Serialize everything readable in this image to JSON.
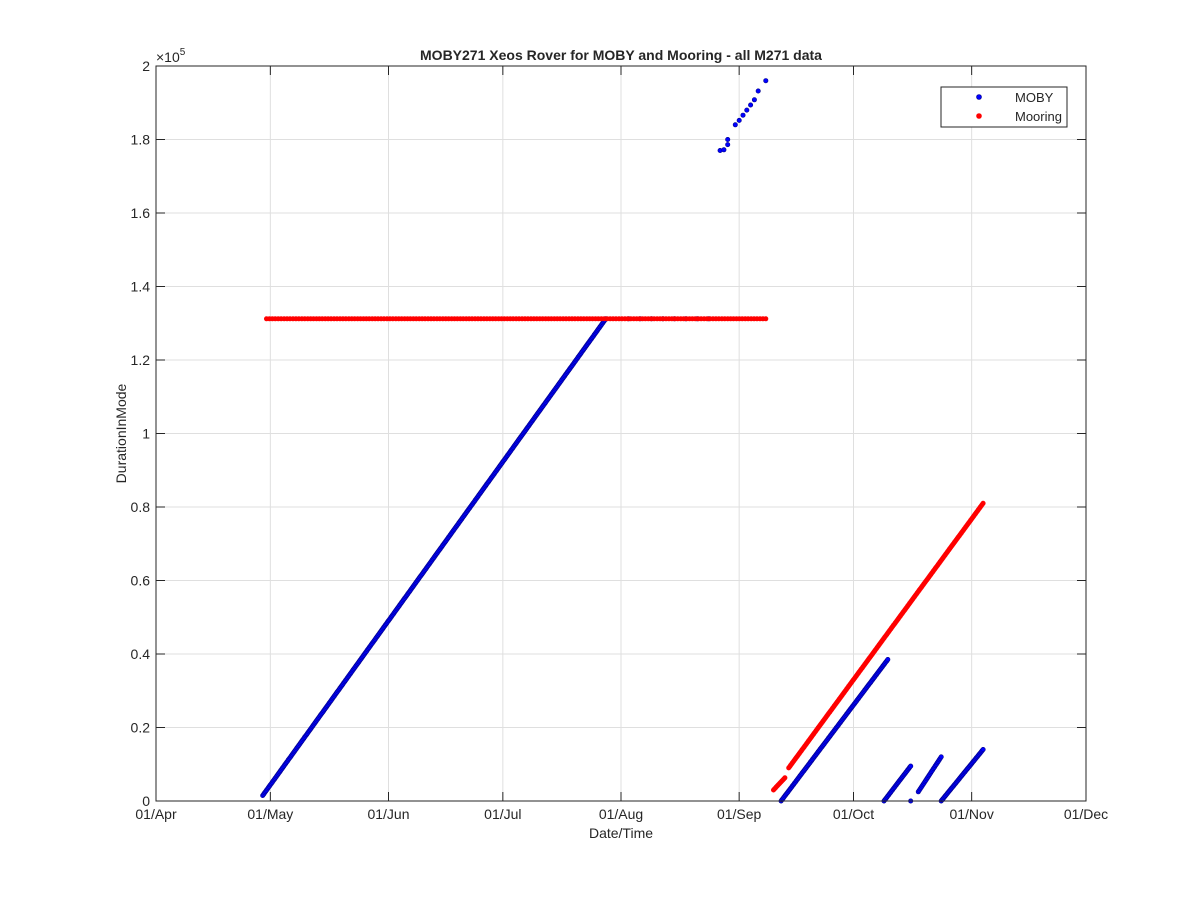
{
  "chart_data": {
    "type": "scatter",
    "title": "MOBY271 Xeos Rover for MOBY and Mooring - all M271 data",
    "xlabel": "Date/Time",
    "ylabel": "DurationInMode",
    "x_tick_labels": [
      "01/Apr",
      "01/May",
      "01/Jun",
      "01/Jul",
      "01/Aug",
      "01/Sep",
      "01/Oct",
      "01/Nov",
      "01/Dec"
    ],
    "y_tick_labels": [
      "0",
      "0.2",
      "0.4",
      "0.6",
      "0.8",
      "1",
      "1.2",
      "1.4",
      "1.6",
      "1.8",
      "2"
    ],
    "y_exponent_base": "×10",
    "y_exponent_power": "5",
    "xlim": [
      "2023-04-01",
      "2023-12-01"
    ],
    "ylim": [
      0,
      200000
    ],
    "grid": true,
    "legend_position": "top-right",
    "series": [
      {
        "name": "MOBY",
        "color": "#00008b",
        "fill": "#0000ff",
        "segments": [
          {
            "x_start": "2023-04-29",
            "x_end": "2023-07-28",
            "y_start": 1500,
            "y_end": 131200
          },
          {
            "x_start": "2023-09-12",
            "x_end": "2023-10-10",
            "y_start": 0,
            "y_end": 38500
          },
          {
            "x_start": "2023-10-09",
            "x_end": "2023-10-16",
            "y_start": 0,
            "y_end": 9500
          },
          {
            "x_start": "2023-10-18",
            "x_end": "2023-10-24",
            "y_start": 2500,
            "y_end": 12000
          },
          {
            "x_start": "2023-10-24",
            "x_end": "2023-11-04",
            "y_start": 0,
            "y_end": 14000
          }
        ],
        "points": [
          [
            "2023-08-03",
            131200
          ],
          [
            "2023-08-06",
            131200
          ],
          [
            "2023-08-09",
            131200
          ],
          [
            "2023-08-12",
            131200
          ],
          [
            "2023-08-15",
            131200
          ],
          [
            "2023-08-18",
            131200
          ],
          [
            "2023-08-21",
            131200
          ],
          [
            "2023-08-24",
            131200
          ],
          [
            "2023-08-27",
            177000
          ],
          [
            "2023-08-28",
            177200
          ],
          [
            "2023-08-29",
            178600
          ],
          [
            "2023-08-29",
            180000
          ],
          [
            "2023-08-31",
            184000
          ],
          [
            "2023-09-01",
            185200
          ],
          [
            "2023-09-02",
            186600
          ],
          [
            "2023-09-03",
            188000
          ],
          [
            "2023-09-04",
            189400
          ],
          [
            "2023-09-05",
            190800
          ],
          [
            "2023-09-06",
            193200
          ],
          [
            "2023-09-08",
            196000
          ],
          [
            "2023-10-16",
            0
          ]
        ]
      },
      {
        "name": "Mooring",
        "color": "#ff0000",
        "fill": "#ff0000",
        "segments": [
          {
            "x_start": "2023-09-10",
            "x_end": "2023-09-13",
            "y_start": 3000,
            "y_end": 6300
          },
          {
            "x_start": "2023-09-14",
            "x_end": "2023-11-04",
            "y_start": 9000,
            "y_end": 81000
          }
        ],
        "flat_runs": [
          {
            "x_start": "2023-04-30",
            "x_end": "2023-09-08",
            "y": 131200
          }
        ]
      }
    ]
  }
}
